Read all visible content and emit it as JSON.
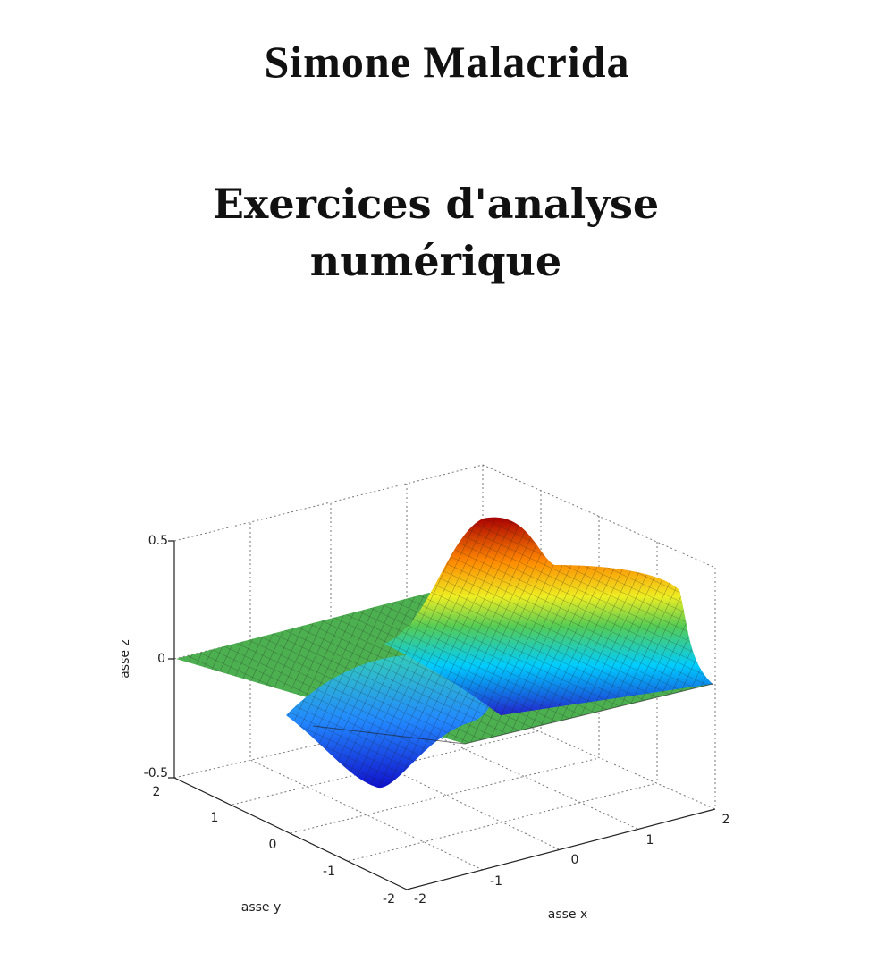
{
  "author": "Simone Malacrida",
  "title": [
    "Exercices d'analyse",
    "numérique"
  ],
  "figure": {
    "z_label": "asse z",
    "y_label": "asse y",
    "x_label": "asse x",
    "z_ticks": [
      "0.5",
      "0",
      "-0.5"
    ],
    "y_ticks": [
      "2",
      "1",
      "0",
      "-1",
      "-2"
    ],
    "x_ticks": [
      "-2",
      "-1",
      "0",
      "1",
      "2"
    ]
  }
}
